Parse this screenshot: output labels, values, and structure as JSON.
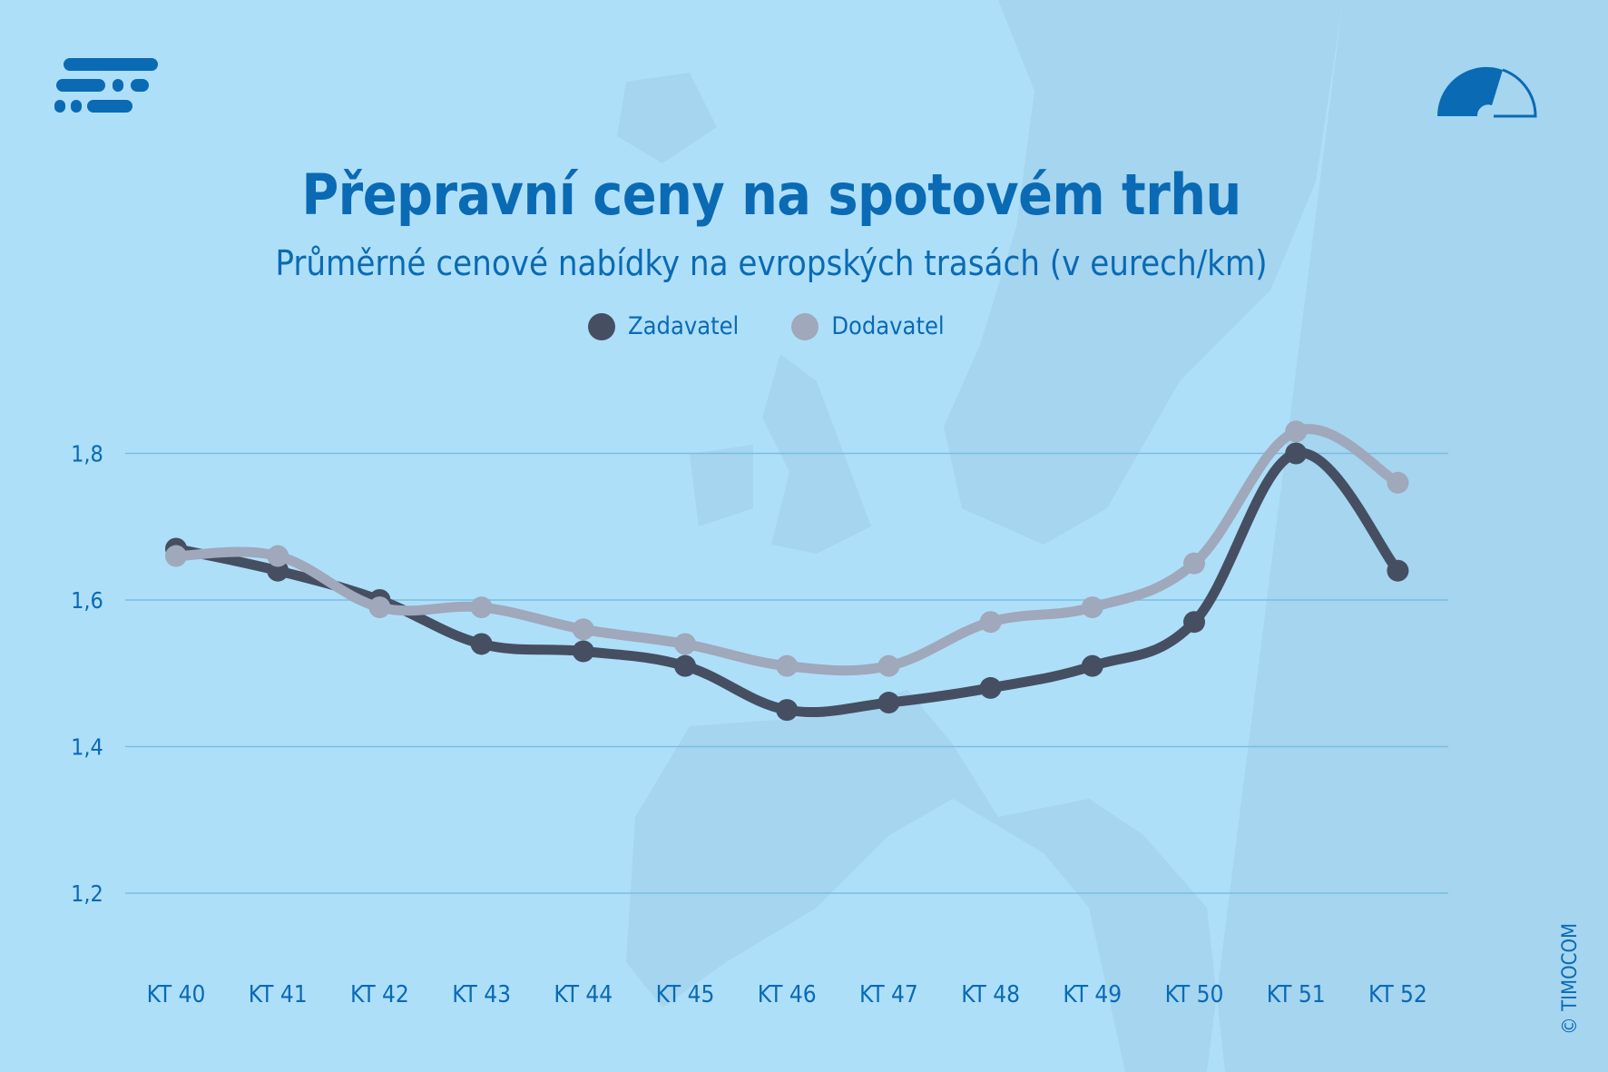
{
  "title": "Přepravní ceny na spotovém trhu",
  "subtitle": "Průměrné cenové nabídky na evropských trasách (v eurech/km)",
  "copyright": "© TIMOCOM",
  "icons": {
    "logo": "timocom-logo",
    "gauge": "gauge-icon"
  },
  "colors": {
    "background": "#aedff9",
    "text": "#0a6ab4",
    "zadavatel": "#454f61",
    "dodavatel": "#a0a8bb",
    "grid": "#7bbde0"
  },
  "chart_data": {
    "type": "line",
    "title": "Přepravní ceny na spotovém trhu",
    "subtitle": "Průměrné cenové nabídky na evropských trasách (v eurech/km)",
    "categories": [
      "KT 40",
      "KT 41",
      "KT 42",
      "KT 43",
      "KT 44",
      "KT 45",
      "KT 46",
      "KT 47",
      "KT 48",
      "KT 49",
      "KT 50",
      "KT 51",
      "KT 52"
    ],
    "series": [
      {
        "name": "Zadavatel",
        "color": "#454f61",
        "values": [
          1.67,
          1.64,
          1.6,
          1.54,
          1.53,
          1.51,
          1.45,
          1.46,
          1.48,
          1.51,
          1.57,
          1.8,
          1.64
        ]
      },
      {
        "name": "Dodavatel",
        "color": "#a0a8bb",
        "values": [
          1.66,
          1.66,
          1.59,
          1.59,
          1.56,
          1.54,
          1.51,
          1.51,
          1.57,
          1.59,
          1.65,
          1.83,
          1.76
        ]
      }
    ],
    "yticks": [
      1.2,
      1.4,
      1.6,
      1.8
    ],
    "ytick_labels": [
      "1,2",
      "1,4",
      "1,6",
      "1,8"
    ],
    "ylim": [
      1.2,
      1.8
    ],
    "grid": true,
    "legend": "top-center",
    "smooth": true
  }
}
